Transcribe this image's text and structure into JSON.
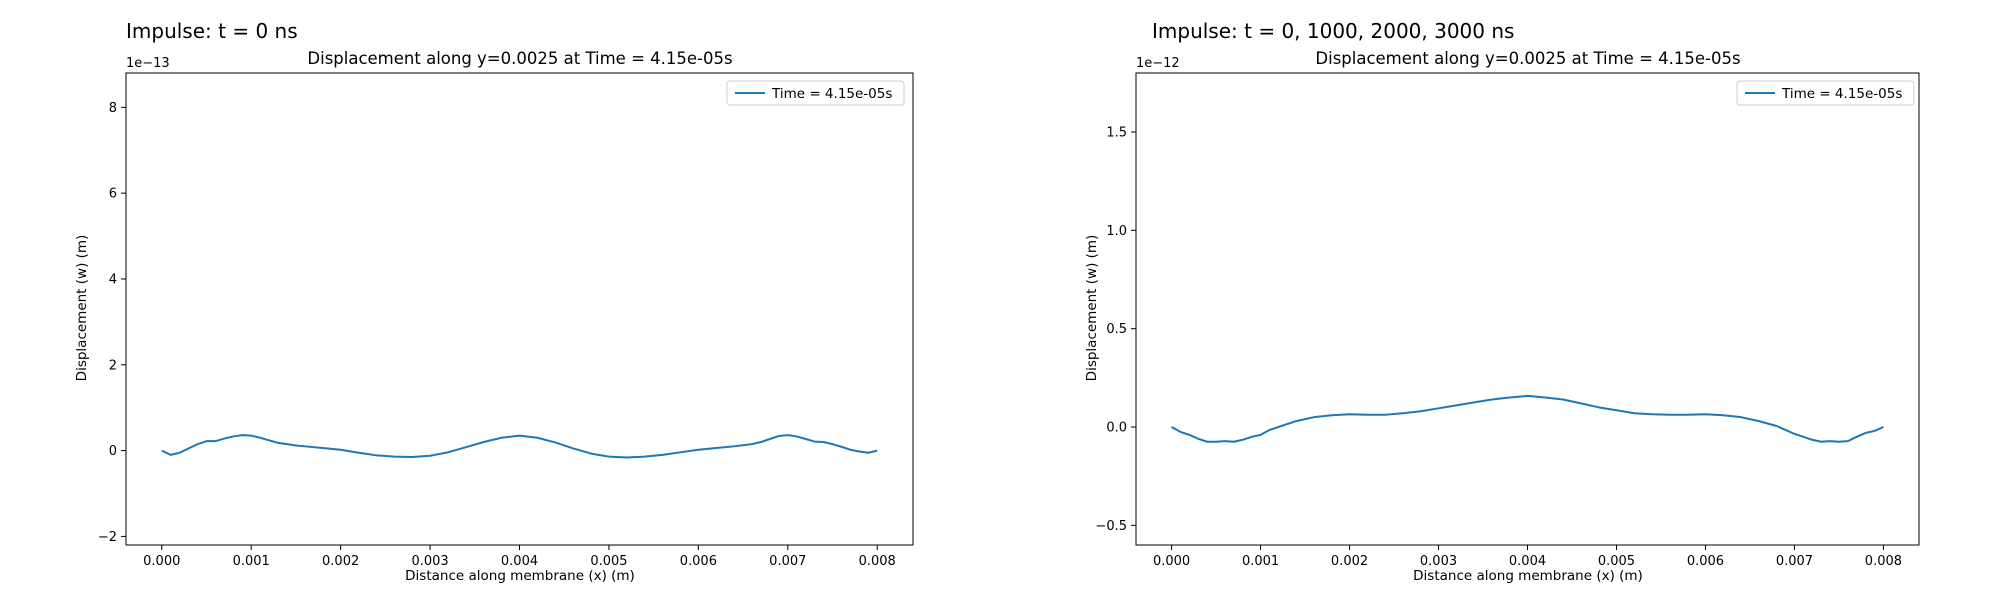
{
  "figures": [
    {
      "suptitle": "Impulse: t = 0 ns",
      "title": "Displacement along y=0.0025 at Time = 4.15e-05s",
      "xlabel": "Distance along membrane (x) (m)",
      "ylabel": "Displacement (w) (m)",
      "offset_text": "1e−13",
      "legend": "Time = 4.15e-05s",
      "x_ticks": [
        "0.000",
        "0.001",
        "0.002",
        "0.003",
        "0.004",
        "0.005",
        "0.006",
        "0.007",
        "0.008"
      ],
      "y_ticks": [
        "−2",
        "0",
        "2",
        "4",
        "6",
        "8"
      ]
    },
    {
      "suptitle": "Impulse: t = 0, 1000, 2000, 3000 ns",
      "title": "Displacement along y=0.0025 at Time = 4.15e-05s",
      "xlabel": "Distance along membrane (x) (m)",
      "ylabel": "Displacement (w) (m)",
      "offset_text": "1e−12",
      "legend": "Time = 4.15e-05s",
      "x_ticks": [
        "0.000",
        "0.001",
        "0.002",
        "0.003",
        "0.004",
        "0.005",
        "0.006",
        "0.007",
        "0.008"
      ],
      "y_ticks": [
        "−0.5",
        "0.0",
        "0.5",
        "1.0",
        "1.5"
      ]
    }
  ],
  "chart_data": [
    {
      "type": "line",
      "title": "Displacement along y=0.0025 at Time = 4.15e-05s",
      "xlabel": "Distance along membrane (x) (m)",
      "ylabel": "Displacement (w) (m)",
      "y_scale_factor": 1e-13,
      "xlim": [
        -0.0004,
        0.0084
      ],
      "ylim": [
        -2.2,
        8.8
      ],
      "x_ticks": [
        0,
        0.001,
        0.002,
        0.003,
        0.004,
        0.005,
        0.006,
        0.007,
        0.008
      ],
      "y_ticks": [
        -2,
        0,
        2,
        4,
        6,
        8
      ],
      "grid": false,
      "legend_position": "top-right",
      "color": "#1f77b4",
      "series": [
        {
          "name": "Time = 4.15e-05s",
          "x": [
            0,
            0.0001,
            0.0002,
            0.0003,
            0.0004,
            0.0005,
            0.0006,
            0.0007,
            0.0008,
            0.0009,
            0.001,
            0.0011,
            0.0012,
            0.0013,
            0.0014,
            0.0015,
            0.0016,
            0.0018,
            0.002,
            0.0022,
            0.0024,
            0.0026,
            0.0028,
            0.003,
            0.0032,
            0.0034,
            0.0036,
            0.0038,
            0.004,
            0.0042,
            0.0044,
            0.0046,
            0.0048,
            0.005,
            0.0052,
            0.0054,
            0.0056,
            0.0058,
            0.006,
            0.0062,
            0.0064,
            0.0066,
            0.0067,
            0.0068,
            0.0069,
            0.007,
            0.0071,
            0.0072,
            0.0073,
            0.0074,
            0.0075,
            0.0076,
            0.0077,
            0.0078,
            0.0079,
            0.008
          ],
          "y": [
            0.0,
            -0.1,
            -0.05,
            0.05,
            0.15,
            0.22,
            0.22,
            0.28,
            0.33,
            0.36,
            0.35,
            0.3,
            0.24,
            0.18,
            0.15,
            0.12,
            0.1,
            0.06,
            0.02,
            -0.05,
            -0.11,
            -0.14,
            -0.15,
            -0.12,
            -0.04,
            0.08,
            0.2,
            0.3,
            0.35,
            0.3,
            0.19,
            0.05,
            -0.07,
            -0.14,
            -0.16,
            -0.14,
            -0.1,
            -0.04,
            0.02,
            0.06,
            0.1,
            0.15,
            0.2,
            0.27,
            0.34,
            0.36,
            0.33,
            0.27,
            0.21,
            0.2,
            0.15,
            0.09,
            0.02,
            -0.02,
            -0.05,
            0.0
          ]
        }
      ]
    },
    {
      "type": "line",
      "title": "Displacement along y=0.0025 at Time = 4.15e-05s",
      "xlabel": "Distance along membrane (x) (m)",
      "ylabel": "Displacement (w) (m)",
      "y_scale_factor": 1e-12,
      "xlim": [
        -0.0004,
        0.0084
      ],
      "ylim": [
        -0.6,
        1.8
      ],
      "x_ticks": [
        0,
        0.001,
        0.002,
        0.003,
        0.004,
        0.005,
        0.006,
        0.007,
        0.008
      ],
      "y_ticks": [
        -0.5,
        0.0,
        0.5,
        1.0,
        1.5
      ],
      "grid": false,
      "legend_position": "top-right",
      "color": "#1f77b4",
      "series": [
        {
          "name": "Time = 4.15e-05s",
          "x": [
            0,
            0.0001,
            0.0002,
            0.0003,
            0.0004,
            0.0005,
            0.0006,
            0.0007,
            0.0008,
            0.0009,
            0.001,
            0.0011,
            0.0012,
            0.0014,
            0.0016,
            0.0018,
            0.002,
            0.0022,
            0.0024,
            0.0026,
            0.0028,
            0.003,
            0.0032,
            0.0034,
            0.0036,
            0.0038,
            0.004,
            0.0042,
            0.0044,
            0.0046,
            0.0048,
            0.005,
            0.0052,
            0.0054,
            0.0056,
            0.0058,
            0.006,
            0.0062,
            0.0064,
            0.0066,
            0.0068,
            0.0069,
            0.007,
            0.0071,
            0.0072,
            0.0073,
            0.0074,
            0.0075,
            0.0076,
            0.0077,
            0.0078,
            0.0079,
            0.008
          ],
          "y": [
            0.0,
            -0.025,
            -0.04,
            -0.06,
            -0.075,
            -0.075,
            -0.072,
            -0.075,
            -0.065,
            -0.05,
            -0.04,
            -0.015,
            0.0,
            0.03,
            0.05,
            0.06,
            0.065,
            0.062,
            0.062,
            0.07,
            0.08,
            0.095,
            0.11,
            0.125,
            0.14,
            0.15,
            0.158,
            0.15,
            0.14,
            0.12,
            0.1,
            0.085,
            0.07,
            0.065,
            0.062,
            0.062,
            0.065,
            0.06,
            0.05,
            0.03,
            0.005,
            -0.015,
            -0.035,
            -0.05,
            -0.065,
            -0.075,
            -0.072,
            -0.075,
            -0.072,
            -0.05,
            -0.03,
            -0.02,
            0.0
          ]
        }
      ]
    }
  ]
}
